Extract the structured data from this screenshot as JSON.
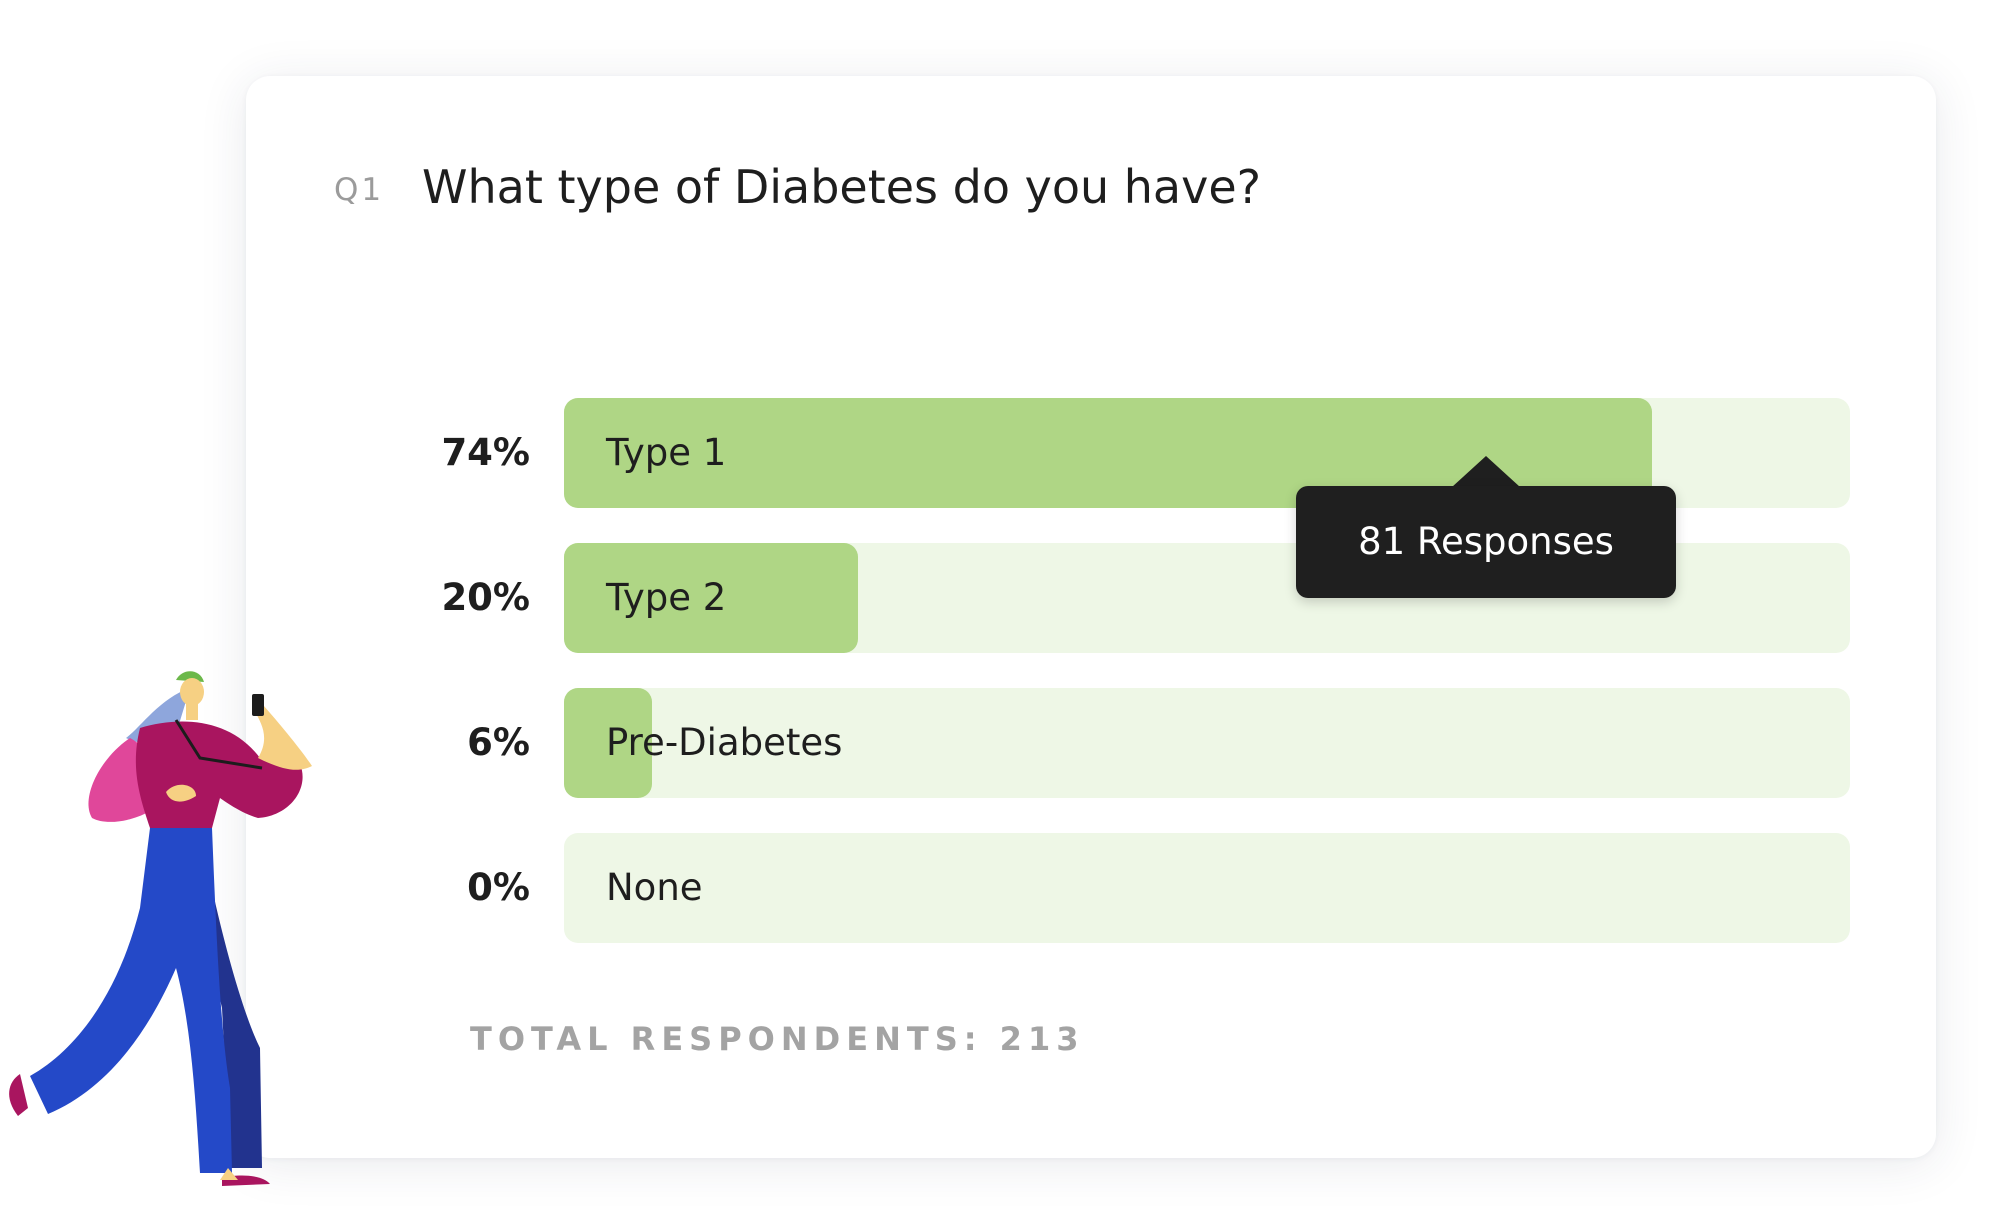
{
  "question": {
    "number": "Q1",
    "text": "What type of Diabetes do you have?"
  },
  "tooltip": {
    "text": "81 Responses"
  },
  "total": {
    "text": "TOTAL RESPONDENTS: 213"
  },
  "colors": {
    "fill": "#afd685",
    "track": "#eef7e6",
    "tooltip_bg": "#1f1f1f"
  },
  "chart_data": {
    "type": "bar",
    "orientation": "horizontal",
    "categories": [
      "Type 1",
      "Type 2",
      "Pre-Diabetes",
      "None"
    ],
    "values": [
      74,
      20,
      6,
      0
    ],
    "value_labels": [
      "74%",
      "20%",
      "6%",
      "0%"
    ],
    "unit": "%",
    "xlim": [
      0,
      100
    ],
    "grid": false,
    "legend": "none"
  }
}
